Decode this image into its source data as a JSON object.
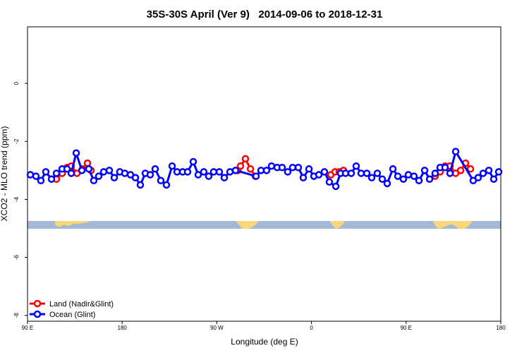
{
  "chart_data": {
    "type": "line",
    "title": "35S-30S April (Ver 9)   2014-09-06 to 2018-12-31",
    "xlabel": "Longitude (deg E)",
    "ylabel": "XCO2 - MLO trend (ppm)",
    "xlim": [
      90,
      540
    ],
    "ylim": [
      -8.2,
      1.95
    ],
    "xticks": [
      {
        "value": 90,
        "label": "90 E"
      },
      {
        "value": 180,
        "label": "180"
      },
      {
        "value": 270,
        "label": "90 W"
      },
      {
        "value": 360,
        "label": "0"
      },
      {
        "value": 450,
        "label": "90 E"
      },
      {
        "value": 540,
        "label": "180"
      }
    ],
    "yticks": [
      0,
      -2,
      -4,
      -6,
      -8
    ],
    "legend": "bottom-left",
    "series": [
      {
        "name": "Land (Nadir&Glint)",
        "color": "#ff0000",
        "x": [
          117.5,
          123,
          127.6,
          131.6,
          137,
          142.3,
          147,
          150.4,
          null,
          290,
          292.5,
          297.2,
          302,
          306.6,
          null,
          378.4,
          382.4,
          386.4,
          390.4,
          null,
          477.6,
          482.3,
          487,
          491.7,
          497.1,
          501.8,
          506.5,
          511.2
        ],
        "values": [
          -3.3,
          -3.1,
          -2.9,
          -2.85,
          -3.1,
          -2.95,
          -2.75,
          -3.0,
          null,
          -3.0,
          -2.85,
          -2.6,
          -2.95,
          -3.2,
          null,
          -3.15,
          -3.05,
          -3.05,
          -3.0,
          null,
          -3.2,
          -3.05,
          -2.85,
          -2.85,
          -3.1,
          -3.0,
          -2.75,
          -2.95
        ]
      },
      {
        "name": "Ocean (Glint)",
        "color": "#0000ff",
        "x": [
          92.7,
          98,
          102.7,
          107.4,
          112.8,
          117.5,
          122.9,
          127.6,
          131.6,
          136.3,
          141.7,
          148.3,
          153,
          157.7,
          162.4,
          167.8,
          172.5,
          177.8,
          182.5,
          187.9,
          192.6,
          197.3,
          202,
          206.7,
          211.4,
          216.7,
          222.1,
          227.5,
          232.2,
          237.5,
          242.2,
          247.6,
          252.3,
          257.6,
          262.3,
          267,
          272.4,
          277.1,
          282.5,
          287.8,
          307.3,
          312,
          317.3,
          322,
          327.4,
          332.1,
          337.4,
          342.1,
          347.5,
          352.2,
          357.6,
          362.3,
          367,
          372.3,
          377,
          383.1,
          387.7,
          392.4,
          397.8,
          402.5,
          407.2,
          412.6,
          417.3,
          422.6,
          427.3,
          432,
          437.4,
          442.1,
          447.4,
          452.1,
          457.5,
          462.2,
          467.6,
          472.3,
          477.6,
          482.3,
          487,
          491.7,
          497.1,
          513.8,
          518.5,
          523.2,
          528.6,
          533.3,
          538
        ],
        "values": [
          -3.15,
          -3.2,
          -3.35,
          -3.05,
          -3.3,
          -3.1,
          -2.95,
          -2.95,
          -3.1,
          -2.4,
          -3.0,
          -2.95,
          -3.35,
          -3.2,
          -3.05,
          -3.0,
          -3.25,
          -3.05,
          -3.1,
          -3.15,
          -3.25,
          -3.5,
          -3.1,
          -3.15,
          -2.95,
          -3.35,
          -3.5,
          -2.85,
          -3.05,
          -3.05,
          -3.05,
          -2.7,
          -3.15,
          -3.05,
          -3.2,
          -3.05,
          -3.05,
          -3.25,
          -3.05,
          -3.0,
          -3.2,
          -3.0,
          -3.0,
          -2.85,
          -2.9,
          -2.9,
          -3.05,
          -2.9,
          -2.9,
          -3.25,
          -2.95,
          -3.2,
          -3.15,
          -3.05,
          -3.4,
          -3.55,
          -3.1,
          -3.1,
          -3.1,
          -2.85,
          -3.1,
          -3.1,
          -3.25,
          -3.1,
          -3.3,
          -3.45,
          -2.95,
          -3.2,
          -3.3,
          -3.15,
          -3.2,
          -3.35,
          -3.0,
          -3.3,
          -3.1,
          -2.9,
          -2.9,
          -3.1,
          -2.35,
          -3.35,
          -3.25,
          -3.1,
          -3.0,
          -3.3,
          -3.05
        ]
      }
    ]
  }
}
